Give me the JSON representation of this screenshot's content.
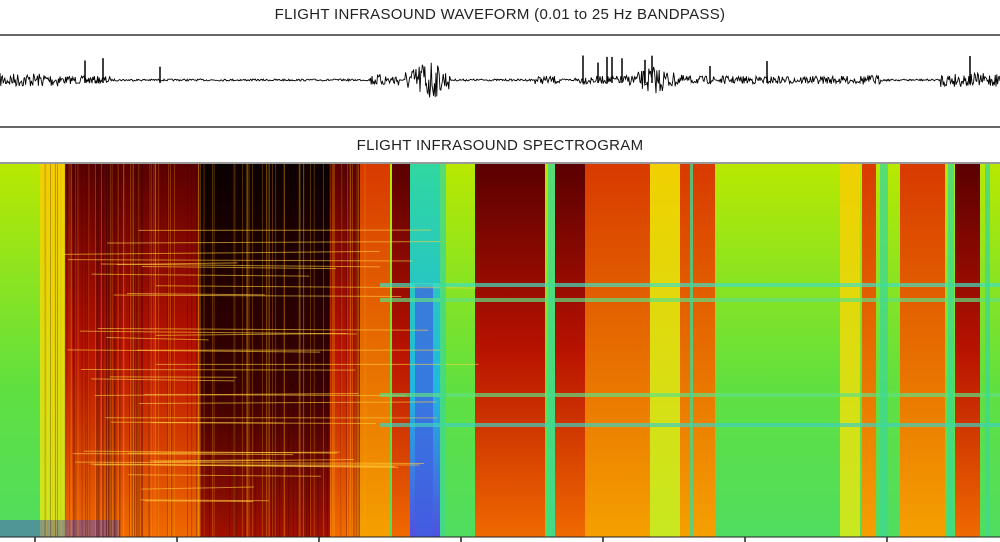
{
  "waveform": {
    "title": "FLIGHT INFRASOUND WAVEFORM (0.01 to 25 Hz BANDPASS)"
  },
  "spectrogram": {
    "title": "FLIGHT INFRASOUND SPECTROGRAM"
  }
}
